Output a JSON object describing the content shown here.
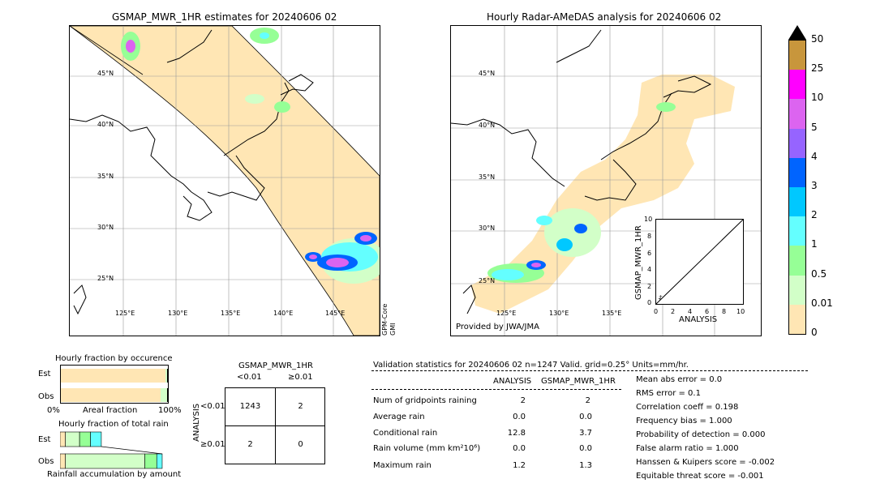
{
  "maps": {
    "left_title": "GSMAP_MWR_1HR estimates for 20240606 02",
    "right_title": "Hourly Radar-AMeDAS analysis for 20240606 02",
    "lat_labels": [
      "45°N",
      "40°N",
      "35°N",
      "30°N",
      "25°N"
    ],
    "lon_labels": [
      "125°E",
      "130°E",
      "135°E",
      "140°E",
      "145°E"
    ],
    "left_side_label_1": "GPM-Core",
    "left_side_label_2": "GMI",
    "provided_by": "Provided by JWA/JMA"
  },
  "colorbar": {
    "labels": [
      "50",
      "25",
      "10",
      "5",
      "4",
      "3",
      "2",
      "1",
      "0.5",
      "0.01",
      "0"
    ],
    "colors": [
      "#c8963c",
      "#ff00ff",
      "#dc64f0",
      "#9664ff",
      "#0064ff",
      "#00c8ff",
      "#64ffff",
      "#96ff96",
      "#d2ffc8",
      "#ffe6b4"
    ],
    "extend_color": "#000000"
  },
  "inset_scatter": {
    "ylabel": "GSMAP_MWR_1HR",
    "xlabel": "ANALYSIS",
    "ticks": [
      "0",
      "2",
      "4",
      "6",
      "8",
      "10"
    ],
    "y_ticks": [
      "0",
      "2",
      "4",
      "6",
      "8",
      "10"
    ]
  },
  "chart_data": [
    {
      "type": "bar",
      "title": "Hourly fraction by occurence",
      "categories": [
        "Est",
        "Obs"
      ],
      "xlabel": "Areal fraction",
      "x_min_label": "0%",
      "x_max_label": "100%",
      "series": [
        {
          "values": [
            0.98,
            0.93
          ],
          "color": "#ffe6b4"
        },
        {
          "values": [
            0.015,
            0.06
          ],
          "color": "#d2ffc8"
        },
        {
          "values": [
            0.005,
            0.01
          ],
          "color": "#000000"
        }
      ]
    },
    {
      "type": "bar",
      "title": "Hourly fraction of total rain",
      "categories": [
        "Est",
        "Obs"
      ],
      "xlabel": "Rainfall accumulation by amount",
      "series": [
        {
          "values": [
            0.05,
            0.05
          ],
          "color": "#ffe6b4"
        },
        {
          "values": [
            0.13,
            0.73
          ],
          "color": "#d2ffc8"
        },
        {
          "values": [
            0.1,
            0.11
          ],
          "color": "#96ff96"
        },
        {
          "values": [
            0.1,
            0.05
          ],
          "color": "#64ffff"
        }
      ]
    },
    {
      "type": "table",
      "title": "GSMAP_MWR_1HR",
      "col_labels": [
        "<0.01",
        "≥0.01"
      ],
      "row_labels": [
        "<0.01",
        "≥0.01"
      ],
      "row_axis_label": "ANALYSIS",
      "cells": [
        [
          "1243",
          "2"
        ],
        [
          "2",
          "0"
        ]
      ]
    }
  ],
  "validation": {
    "header": "Validation statistics for 20240606 02  n=1247 Valid. grid=0.25° Units=mm/hr.",
    "col_analysis": "ANALYSIS",
    "col_gsmap": "GSMAP_MWR_1HR",
    "rows": [
      {
        "label": "Num of gridpoints raining",
        "analysis": "2",
        "gsmap": "2"
      },
      {
        "label": "Average rain",
        "analysis": "0.0",
        "gsmap": "0.0"
      },
      {
        "label": "Conditional rain",
        "analysis": "12.8",
        "gsmap": "3.7"
      },
      {
        "label": "Rain volume (mm km²10⁶)",
        "analysis": "0.0",
        "gsmap": "0.0"
      },
      {
        "label": "Maximum rain",
        "analysis": "1.2",
        "gsmap": "1.3"
      }
    ],
    "scores": [
      "Mean abs error =    0.0",
      "RMS error =    0.1",
      "Correlation coeff =  0.198",
      "Frequency bias =  1.000",
      "Probability of detection =  0.000",
      "False alarm ratio =  1.000",
      "Hanssen & Kuipers score = -0.002",
      "Equitable threat score = -0.001"
    ]
  }
}
